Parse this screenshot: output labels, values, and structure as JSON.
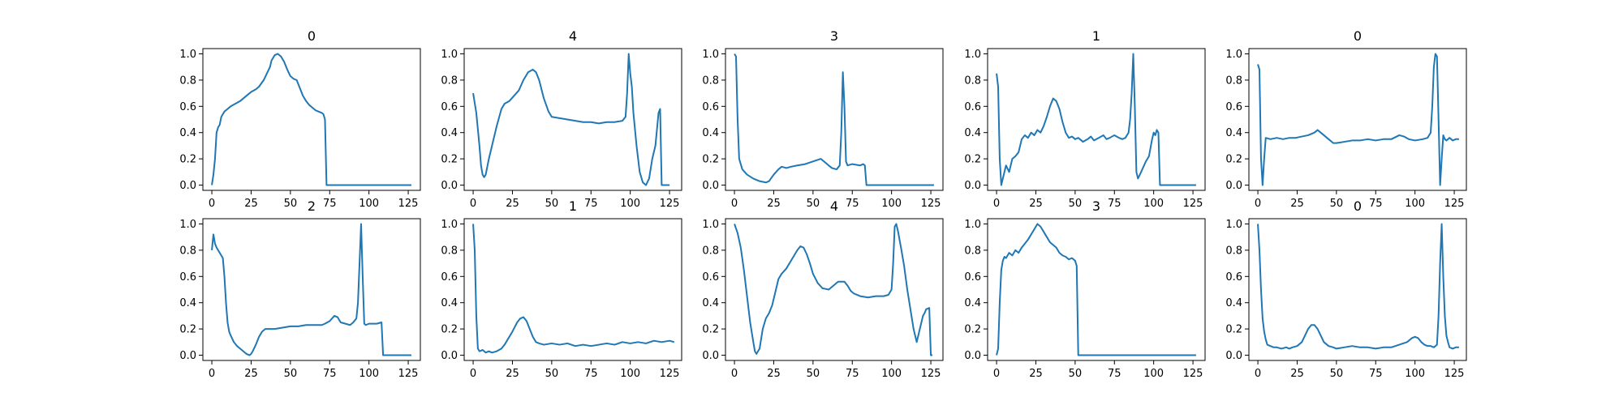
{
  "chart_data": [
    {
      "type": "line",
      "title": "0",
      "xlim": [
        0,
        127
      ],
      "ylim": [
        0,
        1
      ],
      "xticks": [
        0,
        25,
        50,
        75,
        100,
        125
      ],
      "yticks": [
        0.0,
        0.2,
        0.4,
        0.6,
        0.8,
        1.0
      ],
      "xtick_labels": [
        "0",
        "25",
        "50",
        "75",
        "100",
        "125"
      ],
      "ytick_labels": [
        "0.0",
        "0.2",
        "0.4",
        "0.6",
        "0.8",
        "1.0"
      ],
      "color": "#1f77b4",
      "x": [
        0,
        1,
        2,
        3,
        4,
        5,
        6,
        8,
        10,
        12,
        15,
        18,
        20,
        22,
        25,
        28,
        30,
        33,
        35,
        37,
        38,
        40,
        42,
        44,
        46,
        48,
        50,
        52,
        54,
        56,
        58,
        60,
        62,
        64,
        66,
        68,
        70,
        71,
        72,
        73,
        127
      ],
      "y": [
        0.0,
        0.08,
        0.2,
        0.4,
        0.44,
        0.46,
        0.52,
        0.56,
        0.58,
        0.6,
        0.62,
        0.64,
        0.66,
        0.68,
        0.71,
        0.73,
        0.75,
        0.8,
        0.85,
        0.9,
        0.95,
        0.99,
        1.0,
        0.98,
        0.94,
        0.88,
        0.83,
        0.81,
        0.8,
        0.74,
        0.68,
        0.64,
        0.61,
        0.59,
        0.57,
        0.56,
        0.55,
        0.54,
        0.5,
        0.0,
        0.0
      ]
    },
    {
      "type": "line",
      "title": "4",
      "xlim": [
        0,
        127
      ],
      "ylim": [
        0,
        1
      ],
      "xticks": [
        0,
        25,
        50,
        75,
        100,
        125
      ],
      "yticks": [
        0.0,
        0.2,
        0.4,
        0.6,
        0.8,
        1.0
      ],
      "xtick_labels": [
        "0",
        "25",
        "50",
        "75",
        "100",
        "125"
      ],
      "ytick_labels": [
        "0.0",
        "0.2",
        "0.4",
        "0.6",
        "0.8",
        "1.0"
      ],
      "color": "#1f77b4",
      "x": [
        0,
        2,
        4,
        5,
        6,
        7,
        8,
        10,
        12,
        15,
        18,
        20,
        23,
        26,
        29,
        32,
        35,
        38,
        40,
        42,
        45,
        48,
        50,
        55,
        60,
        65,
        70,
        75,
        80,
        85,
        90,
        95,
        97,
        98,
        99,
        100,
        101,
        102,
        104,
        106,
        108,
        110,
        112,
        114,
        116,
        118,
        119,
        120,
        122,
        125
      ],
      "y": [
        0.7,
        0.55,
        0.3,
        0.15,
        0.08,
        0.06,
        0.08,
        0.2,
        0.3,
        0.45,
        0.58,
        0.62,
        0.64,
        0.68,
        0.72,
        0.8,
        0.86,
        0.88,
        0.86,
        0.8,
        0.66,
        0.56,
        0.52,
        0.51,
        0.5,
        0.49,
        0.48,
        0.48,
        0.47,
        0.48,
        0.48,
        0.49,
        0.52,
        0.7,
        1.0,
        0.85,
        0.75,
        0.55,
        0.3,
        0.1,
        0.02,
        0.0,
        0.05,
        0.2,
        0.3,
        0.55,
        0.58,
        0.0,
        0.0,
        0.0
      ]
    },
    {
      "type": "line",
      "title": "3",
      "xlim": [
        0,
        127
      ],
      "ylim": [
        0,
        1
      ],
      "xticks": [
        0,
        25,
        50,
        75,
        100,
        125
      ],
      "yticks": [
        0.0,
        0.2,
        0.4,
        0.6,
        0.8,
        1.0
      ],
      "xtick_labels": [
        "0",
        "25",
        "50",
        "75",
        "100",
        "125"
      ],
      "ytick_labels": [
        "0.0",
        "0.2",
        "0.4",
        "0.6",
        "0.8",
        "1.0"
      ],
      "color": "#1f77b4",
      "x": [
        0,
        1,
        2,
        3,
        5,
        8,
        12,
        16,
        20,
        22,
        25,
        28,
        30,
        33,
        36,
        40,
        45,
        50,
        55,
        58,
        60,
        62,
        65,
        67,
        68,
        69,
        70,
        71,
        72,
        75,
        80,
        82,
        83,
        84,
        127
      ],
      "y": [
        1.0,
        0.98,
        0.5,
        0.2,
        0.12,
        0.08,
        0.05,
        0.03,
        0.02,
        0.03,
        0.08,
        0.12,
        0.14,
        0.13,
        0.14,
        0.15,
        0.16,
        0.18,
        0.2,
        0.17,
        0.15,
        0.13,
        0.12,
        0.15,
        0.4,
        0.86,
        0.6,
        0.18,
        0.15,
        0.16,
        0.15,
        0.16,
        0.15,
        0.0,
        0.0
      ]
    },
    {
      "type": "line",
      "title": "1",
      "xlim": [
        0,
        127
      ],
      "ylim": [
        0,
        1
      ],
      "xticks": [
        0,
        25,
        50,
        75,
        100,
        125
      ],
      "yticks": [
        0.0,
        0.2,
        0.4,
        0.6,
        0.8,
        1.0
      ],
      "xtick_labels": [
        "0",
        "25",
        "50",
        "75",
        "100",
        "125"
      ],
      "ytick_labels": [
        "0.0",
        "0.2",
        "0.4",
        "0.6",
        "0.8",
        "1.0"
      ],
      "color": "#1f77b4",
      "x": [
        0,
        1,
        2,
        3,
        4,
        6,
        8,
        10,
        12,
        14,
        16,
        18,
        20,
        22,
        24,
        26,
        28,
        30,
        32,
        34,
        36,
        38,
        40,
        42,
        44,
        46,
        48,
        50,
        52,
        55,
        58,
        60,
        62,
        65,
        68,
        70,
        72,
        75,
        78,
        80,
        82,
        84,
        85,
        86,
        87,
        88,
        89,
        90,
        92,
        95,
        97,
        99,
        100,
        101,
        102,
        103,
        104,
        127
      ],
      "y": [
        0.85,
        0.75,
        0.2,
        0.0,
        0.05,
        0.15,
        0.1,
        0.2,
        0.22,
        0.25,
        0.35,
        0.38,
        0.36,
        0.4,
        0.38,
        0.42,
        0.4,
        0.45,
        0.52,
        0.6,
        0.66,
        0.64,
        0.58,
        0.48,
        0.4,
        0.36,
        0.37,
        0.35,
        0.36,
        0.33,
        0.35,
        0.37,
        0.34,
        0.36,
        0.38,
        0.35,
        0.36,
        0.38,
        0.36,
        0.35,
        0.36,
        0.4,
        0.5,
        0.7,
        1.0,
        0.6,
        0.1,
        0.05,
        0.1,
        0.18,
        0.22,
        0.35,
        0.4,
        0.38,
        0.42,
        0.4,
        0.0,
        0.0
      ]
    },
    {
      "type": "line",
      "title": "0",
      "xlim": [
        0,
        127
      ],
      "ylim": [
        0,
        1
      ],
      "xticks": [
        0,
        25,
        50,
        75,
        100,
        125
      ],
      "yticks": [
        0.0,
        0.2,
        0.4,
        0.6,
        0.8,
        1.0
      ],
      "xtick_labels": [
        "0",
        "25",
        "50",
        "75",
        "100",
        "125"
      ],
      "ytick_labels": [
        "0.0",
        "0.2",
        "0.4",
        "0.6",
        "0.8",
        "1.0"
      ],
      "color": "#1f77b4",
      "x": [
        0,
        1,
        2,
        3,
        4,
        5,
        8,
        12,
        16,
        20,
        24,
        28,
        32,
        36,
        38,
        40,
        42,
        45,
        48,
        50,
        55,
        60,
        65,
        70,
        75,
        80,
        85,
        90,
        93,
        96,
        100,
        105,
        108,
        110,
        111,
        112,
        113,
        114,
        115,
        116,
        117,
        118,
        119,
        120,
        122,
        124,
        126,
        128
      ],
      "y": [
        0.92,
        0.88,
        0.2,
        0.0,
        0.2,
        0.36,
        0.35,
        0.36,
        0.35,
        0.36,
        0.36,
        0.37,
        0.38,
        0.4,
        0.42,
        0.4,
        0.38,
        0.35,
        0.32,
        0.32,
        0.33,
        0.34,
        0.34,
        0.35,
        0.34,
        0.35,
        0.35,
        0.38,
        0.37,
        0.35,
        0.34,
        0.35,
        0.36,
        0.4,
        0.6,
        0.9,
        1.0,
        0.98,
        0.5,
        0.0,
        0.2,
        0.38,
        0.35,
        0.34,
        0.36,
        0.34,
        0.35,
        0.35
      ]
    },
    {
      "type": "line",
      "title": "2",
      "xlim": [
        0,
        127
      ],
      "ylim": [
        0,
        1
      ],
      "xticks": [
        0,
        25,
        50,
        75,
        100,
        125
      ],
      "yticks": [
        0.0,
        0.2,
        0.4,
        0.6,
        0.8,
        1.0
      ],
      "xtick_labels": [
        "0",
        "25",
        "50",
        "75",
        "100",
        "125"
      ],
      "ytick_labels": [
        "0.0",
        "0.2",
        "0.4",
        "0.6",
        "0.8",
        "1.0"
      ],
      "color": "#1f77b4",
      "x": [
        0,
        1,
        2,
        3,
        5,
        7,
        8,
        9,
        10,
        11,
        12,
        14,
        16,
        18,
        20,
        22,
        24,
        25,
        26,
        28,
        30,
        32,
        34,
        36,
        40,
        45,
        50,
        55,
        60,
        65,
        70,
        72,
        75,
        78,
        80,
        82,
        85,
        88,
        90,
        92,
        93,
        94,
        95,
        96,
        97,
        98,
        100,
        105,
        108,
        109,
        127
      ],
      "y": [
        0.8,
        0.92,
        0.85,
        0.82,
        0.78,
        0.74,
        0.6,
        0.4,
        0.25,
        0.18,
        0.15,
        0.1,
        0.07,
        0.05,
        0.03,
        0.01,
        0.0,
        0.01,
        0.03,
        0.08,
        0.14,
        0.18,
        0.2,
        0.2,
        0.2,
        0.21,
        0.22,
        0.22,
        0.23,
        0.23,
        0.23,
        0.24,
        0.26,
        0.3,
        0.29,
        0.25,
        0.24,
        0.23,
        0.25,
        0.28,
        0.4,
        0.7,
        1.0,
        0.6,
        0.24,
        0.23,
        0.24,
        0.24,
        0.25,
        0.0,
        0.0
      ]
    },
    {
      "type": "line",
      "title": "1",
      "xlim": [
        0,
        127
      ],
      "ylim": [
        0,
        1
      ],
      "xticks": [
        0,
        25,
        50,
        75,
        100,
        125
      ],
      "yticks": [
        0.0,
        0.2,
        0.4,
        0.6,
        0.8,
        1.0
      ],
      "xtick_labels": [
        "0",
        "25",
        "50",
        "75",
        "100",
        "125"
      ],
      "ytick_labels": [
        "0.0",
        "0.2",
        "0.4",
        "0.6",
        "0.8",
        "1.0"
      ],
      "color": "#1f77b4",
      "x": [
        0,
        1,
        2,
        3,
        4,
        6,
        8,
        10,
        12,
        15,
        18,
        20,
        22,
        25,
        28,
        30,
        32,
        34,
        36,
        38,
        40,
        42,
        45,
        50,
        55,
        60,
        65,
        70,
        75,
        80,
        85,
        90,
        95,
        100,
        105,
        110,
        115,
        120,
        125,
        128
      ],
      "y": [
        1.0,
        0.8,
        0.3,
        0.05,
        0.03,
        0.04,
        0.02,
        0.03,
        0.02,
        0.03,
        0.05,
        0.08,
        0.12,
        0.18,
        0.25,
        0.28,
        0.29,
        0.26,
        0.2,
        0.14,
        0.1,
        0.09,
        0.08,
        0.09,
        0.08,
        0.09,
        0.07,
        0.08,
        0.07,
        0.08,
        0.09,
        0.08,
        0.1,
        0.09,
        0.1,
        0.09,
        0.11,
        0.1,
        0.11,
        0.1
      ]
    },
    {
      "type": "line",
      "title": "4",
      "xlim": [
        0,
        127
      ],
      "ylim": [
        0,
        1
      ],
      "xticks": [
        0,
        25,
        50,
        75,
        100,
        125
      ],
      "yticks": [
        0.0,
        0.2,
        0.4,
        0.6,
        0.8,
        1.0
      ],
      "xtick_labels": [
        "0",
        "25",
        "50",
        "75",
        "100",
        "125"
      ],
      "ytick_labels": [
        "0.0",
        "0.2",
        "0.4",
        "0.6",
        "0.8",
        "1.0"
      ],
      "color": "#1f77b4",
      "x": [
        0,
        2,
        4,
        6,
        8,
        10,
        12,
        13,
        14,
        16,
        18,
        20,
        22,
        24,
        26,
        28,
        30,
        33,
        36,
        40,
        42,
        44,
        46,
        48,
        50,
        53,
        56,
        60,
        63,
        66,
        68,
        70,
        72,
        74,
        76,
        78,
        80,
        85,
        90,
        95,
        98,
        100,
        101,
        102,
        103,
        104,
        106,
        108,
        110,
        112,
        114,
        116,
        118,
        120,
        121,
        122,
        124,
        125,
        126
      ],
      "y": [
        1.0,
        0.93,
        0.82,
        0.65,
        0.45,
        0.25,
        0.1,
        0.03,
        0.01,
        0.05,
        0.2,
        0.28,
        0.32,
        0.38,
        0.48,
        0.58,
        0.62,
        0.66,
        0.72,
        0.8,
        0.83,
        0.82,
        0.77,
        0.7,
        0.62,
        0.55,
        0.51,
        0.5,
        0.53,
        0.56,
        0.56,
        0.56,
        0.53,
        0.49,
        0.47,
        0.46,
        0.45,
        0.44,
        0.45,
        0.45,
        0.46,
        0.5,
        0.7,
        0.98,
        1.0,
        0.95,
        0.82,
        0.68,
        0.5,
        0.35,
        0.2,
        0.1,
        0.2,
        0.3,
        0.32,
        0.35,
        0.36,
        0.0,
        0.0
      ]
    },
    {
      "type": "line",
      "title": "3",
      "xlim": [
        0,
        127
      ],
      "ylim": [
        0,
        1
      ],
      "xticks": [
        0,
        25,
        50,
        75,
        100,
        125
      ],
      "yticks": [
        0.0,
        0.2,
        0.4,
        0.6,
        0.8,
        1.0
      ],
      "xtick_labels": [
        "0",
        "25",
        "50",
        "75",
        "100",
        "125"
      ],
      "ytick_labels": [
        "0.0",
        "0.2",
        "0.4",
        "0.6",
        "0.8",
        "1.0"
      ],
      "color": "#1f77b4",
      "x": [
        0,
        1,
        2,
        3,
        4,
        5,
        6,
        8,
        10,
        12,
        14,
        16,
        18,
        20,
        22,
        24,
        26,
        28,
        30,
        32,
        34,
        36,
        38,
        40,
        42,
        44,
        46,
        48,
        50,
        51,
        52,
        127
      ],
      "y": [
        0.0,
        0.05,
        0.4,
        0.65,
        0.72,
        0.75,
        0.74,
        0.78,
        0.76,
        0.8,
        0.78,
        0.82,
        0.85,
        0.88,
        0.92,
        0.96,
        1.0,
        0.98,
        0.94,
        0.9,
        0.86,
        0.84,
        0.82,
        0.78,
        0.76,
        0.75,
        0.73,
        0.74,
        0.72,
        0.68,
        0.0,
        0.0
      ]
    },
    {
      "type": "line",
      "title": "0",
      "xlim": [
        0,
        127
      ],
      "ylim": [
        0,
        1
      ],
      "xticks": [
        0,
        25,
        50,
        75,
        100,
        125
      ],
      "yticks": [
        0.0,
        0.2,
        0.4,
        0.6,
        0.8,
        1.0
      ],
      "xtick_labels": [
        "0",
        "25",
        "50",
        "75",
        "100",
        "125"
      ],
      "ytick_labels": [
        "0.0",
        "0.2",
        "0.4",
        "0.6",
        "0.8",
        "1.0"
      ],
      "color": "#1f77b4",
      "x": [
        0,
        1,
        2,
        3,
        4,
        5,
        6,
        8,
        10,
        12,
        15,
        18,
        20,
        22,
        25,
        28,
        30,
        32,
        34,
        36,
        38,
        40,
        42,
        45,
        48,
        50,
        55,
        60,
        65,
        70,
        75,
        80,
        85,
        90,
        95,
        98,
        100,
        102,
        104,
        106,
        108,
        110,
        112,
        114,
        115,
        116,
        117,
        118,
        119,
        120,
        121,
        122,
        124,
        126,
        128
      ],
      "y": [
        1.0,
        0.8,
        0.5,
        0.28,
        0.18,
        0.12,
        0.08,
        0.07,
        0.06,
        0.06,
        0.05,
        0.06,
        0.05,
        0.06,
        0.07,
        0.1,
        0.15,
        0.2,
        0.23,
        0.23,
        0.2,
        0.15,
        0.1,
        0.07,
        0.06,
        0.05,
        0.06,
        0.07,
        0.06,
        0.06,
        0.05,
        0.06,
        0.06,
        0.08,
        0.1,
        0.13,
        0.14,
        0.13,
        0.1,
        0.08,
        0.07,
        0.07,
        0.06,
        0.08,
        0.3,
        0.7,
        1.0,
        0.6,
        0.3,
        0.15,
        0.1,
        0.06,
        0.05,
        0.06,
        0.06
      ]
    }
  ]
}
